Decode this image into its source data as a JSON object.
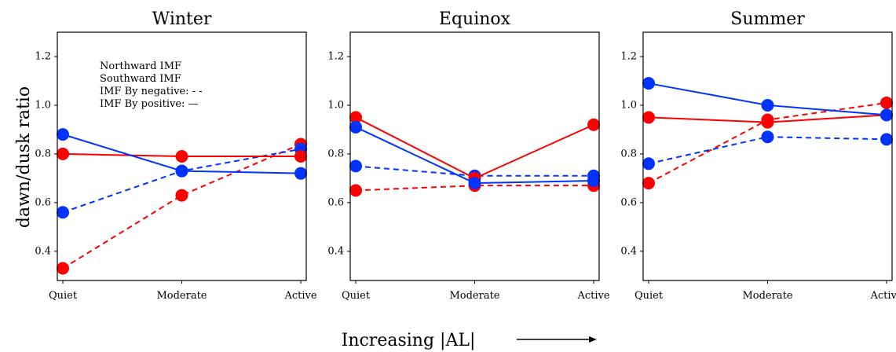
{
  "figure": {
    "ylabel": "dawn/dusk ratio",
    "xlabel": "Increasing |AL|"
  },
  "legend": {
    "northward": "Northward IMF",
    "southward": "Southward IMF",
    "by_negative": "IMF By negative: - -",
    "by_positive": "IMF By positive: —"
  },
  "colors": {
    "northward": "#ff0000",
    "southward": "#0033ff"
  },
  "chart_data": [
    {
      "type": "line",
      "title": "Winter",
      "categories": [
        "Quiet",
        "Moderate",
        "Active"
      ],
      "ylim": [
        0.28,
        1.3
      ],
      "yticks": [
        "0.4",
        "0.6",
        "0.8",
        "1.0",
        "1.2"
      ],
      "series": [
        {
          "name": "Northward IMF, IMF By positive",
          "imf": "northward",
          "by": "positive",
          "values": [
            0.8,
            0.79,
            0.79
          ]
        },
        {
          "name": "Northward IMF, IMF By negative",
          "imf": "northward",
          "by": "negative",
          "values": [
            0.33,
            0.63,
            0.84
          ]
        },
        {
          "name": "Southward IMF, IMF By positive",
          "imf": "southward",
          "by": "positive",
          "values": [
            0.88,
            0.73,
            0.72
          ]
        },
        {
          "name": "Southward IMF, IMF By negative",
          "imf": "southward",
          "by": "negative",
          "values": [
            0.56,
            0.73,
            0.82
          ]
        }
      ]
    },
    {
      "type": "line",
      "title": "Equinox",
      "categories": [
        "Quiet",
        "Moderate",
        "Active"
      ],
      "ylim": [
        0.28,
        1.3
      ],
      "yticks": [
        "0.4",
        "0.6",
        "0.8",
        "1.0",
        "1.2"
      ],
      "series": [
        {
          "name": "Northward IMF, IMF By positive",
          "imf": "northward",
          "by": "positive",
          "values": [
            0.95,
            0.7,
            0.92
          ]
        },
        {
          "name": "Northward IMF, IMF By negative",
          "imf": "northward",
          "by": "negative",
          "values": [
            0.65,
            0.67,
            0.67
          ]
        },
        {
          "name": "Southward IMF, IMF By positive",
          "imf": "southward",
          "by": "positive",
          "values": [
            0.91,
            0.68,
            0.69
          ]
        },
        {
          "name": "Southward IMF, IMF By negative",
          "imf": "southward",
          "by": "negative",
          "values": [
            0.75,
            0.71,
            0.71
          ]
        }
      ]
    },
    {
      "type": "line",
      "title": "Summer",
      "categories": [
        "Quiet",
        "Moderate",
        "Active"
      ],
      "ylim": [
        0.28,
        1.3
      ],
      "yticks": [
        "0.4",
        "0.6",
        "0.8",
        "1.0",
        "1.2"
      ],
      "series": [
        {
          "name": "Northward IMF, IMF By positive",
          "imf": "northward",
          "by": "positive",
          "values": [
            0.95,
            0.93,
            0.96
          ]
        },
        {
          "name": "Northward IMF, IMF By negative",
          "imf": "northward",
          "by": "negative",
          "values": [
            0.68,
            0.94,
            1.01
          ]
        },
        {
          "name": "Southward IMF, IMF By positive",
          "imf": "southward",
          "by": "positive",
          "values": [
            1.09,
            1.0,
            0.96
          ]
        },
        {
          "name": "Southward IMF, IMF By negative",
          "imf": "southward",
          "by": "negative",
          "values": [
            0.76,
            0.87,
            0.86
          ]
        }
      ]
    }
  ]
}
